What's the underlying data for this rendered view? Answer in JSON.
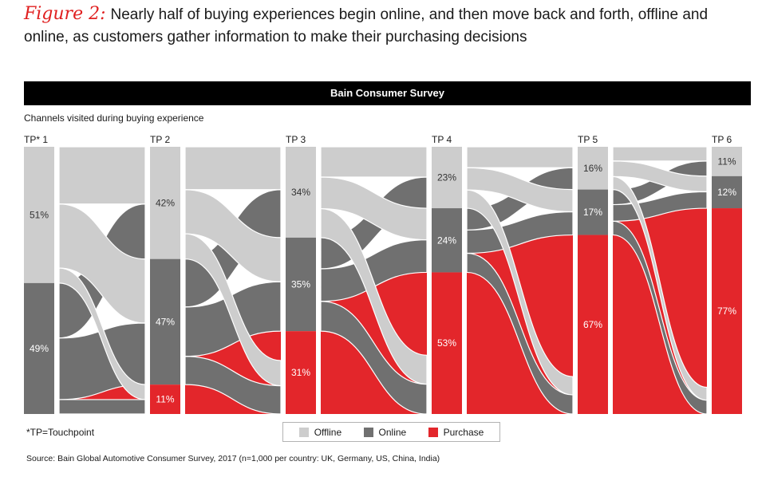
{
  "figure": {
    "label": "Figure 2:",
    "title": "Nearly half of buying experiences begin online, and then move back and forth, offline and online, as customers gather information to make their purchasing decisions"
  },
  "chart_title": "Bain Consumer Survey",
  "colors": {
    "offline": "#cdcdcd",
    "online": "#707070",
    "purchase": "#e3262b"
  },
  "chart_data": {
    "type": "stacked-bar-alluvial",
    "title": "Bain Consumer Survey",
    "ylabel": "Channels visited during buying experience",
    "categories": [
      "TP* 1",
      "TP 2",
      "TP 3",
      "TP 4",
      "TP 5",
      "TP 6"
    ],
    "series": [
      {
        "name": "Offline",
        "values": [
          51,
          42,
          34,
          23,
          16,
          11
        ],
        "labels": [
          "51%",
          "42%",
          "34%",
          "23%",
          "16%",
          "11%"
        ]
      },
      {
        "name": "Online",
        "values": [
          49,
          47,
          35,
          24,
          17,
          12
        ],
        "labels": [
          "49%",
          "47%",
          "35%",
          "24%",
          "17%",
          "12%"
        ]
      },
      {
        "name": "Purchase",
        "values": [
          0,
          11,
          31,
          53,
          67,
          77
        ],
        "labels": [
          "",
          "11%",
          "31%",
          "53%",
          "67%",
          "77%"
        ]
      }
    ],
    "ylim": [
      0,
      100
    ]
  },
  "legend": {
    "offline": "Offline",
    "online": "Online",
    "purchase": "Purchase"
  },
  "footnote": "*TP=Touchpoint",
  "source": "Source: Bain Global Automotive Consumer Survey, 2017 (n=1,000 per country: UK, Germany, US, China, India)"
}
